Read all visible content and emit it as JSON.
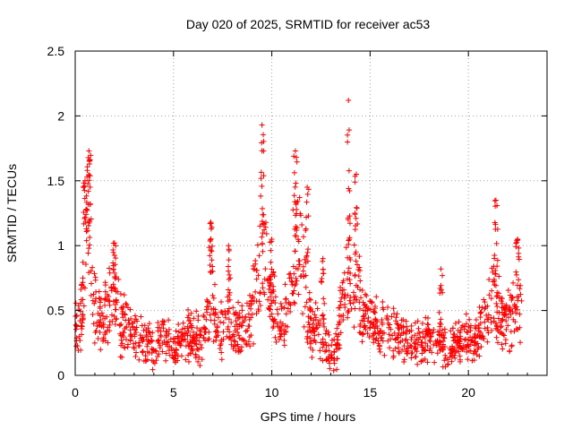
{
  "chart_data": {
    "type": "scatter",
    "title": "Day 020 of 2025, SRMTID for receiver ac53",
    "xlabel": "GPS time / hours",
    "ylabel": "SRMTID / TECUs",
    "xlim": [
      0,
      24
    ],
    "ylim": [
      0,
      2.5
    ],
    "xticks": [
      0,
      5,
      10,
      15,
      20
    ],
    "xtick_labels": [
      "0",
      "5",
      "10",
      "15",
      "20"
    ],
    "yticks": [
      0,
      0.5,
      1,
      1.5,
      2,
      2.5
    ],
    "ytick_labels": [
      "0",
      "0.5",
      "1",
      "1.5",
      "2",
      "2.5"
    ],
    "grid": true,
    "marker": "plus",
    "color": "#ff0000",
    "x_sample_range": [
      0,
      22.7
    ],
    "envelope": [
      [
        0.0,
        0.35
      ],
      [
        0.3,
        0.45
      ],
      [
        0.5,
        0.9
      ],
      [
        0.7,
        1.2
      ],
      [
        0.9,
        0.6
      ],
      [
        1.2,
        0.45
      ],
      [
        1.5,
        0.45
      ],
      [
        1.8,
        0.55
      ],
      [
        2.0,
        0.6
      ],
      [
        2.3,
        0.4
      ],
      [
        2.7,
        0.4
      ],
      [
        3.0,
        0.3
      ],
      [
        3.5,
        0.25
      ],
      [
        4.0,
        0.22
      ],
      [
        4.5,
        0.3
      ],
      [
        5.0,
        0.18
      ],
      [
        5.5,
        0.3
      ],
      [
        6.0,
        0.3
      ],
      [
        6.5,
        0.25
      ],
      [
        6.9,
        0.6
      ],
      [
        7.3,
        0.3
      ],
      [
        7.8,
        0.45
      ],
      [
        8.2,
        0.35
      ],
      [
        8.6,
        0.35
      ],
      [
        9.0,
        0.5
      ],
      [
        9.4,
        0.8
      ],
      [
        9.7,
        1.0
      ],
      [
        10.0,
        0.55
      ],
      [
        10.4,
        0.35
      ],
      [
        10.8,
        0.5
      ],
      [
        11.2,
        1.0
      ],
      [
        11.5,
        0.9
      ],
      [
        11.8,
        0.45
      ],
      [
        12.2,
        0.35
      ],
      [
        12.6,
        0.3
      ],
      [
        13.0,
        0.12
      ],
      [
        13.3,
        0.2
      ],
      [
        13.6,
        0.6
      ],
      [
        14.0,
        0.75
      ],
      [
        14.3,
        0.75
      ],
      [
        14.6,
        0.45
      ],
      [
        15.0,
        0.4
      ],
      [
        15.5,
        0.38
      ],
      [
        16.0,
        0.35
      ],
      [
        16.5,
        0.28
      ],
      [
        17.0,
        0.25
      ],
      [
        17.5,
        0.25
      ],
      [
        18.0,
        0.28
      ],
      [
        18.5,
        0.22
      ],
      [
        19.0,
        0.22
      ],
      [
        19.5,
        0.25
      ],
      [
        20.0,
        0.28
      ],
      [
        20.5,
        0.3
      ],
      [
        20.9,
        0.45
      ],
      [
        21.3,
        0.65
      ],
      [
        21.7,
        0.4
      ],
      [
        22.1,
        0.45
      ],
      [
        22.4,
        0.5
      ],
      [
        22.7,
        0.45
      ]
    ],
    "peaks": [
      [
        0.5,
        1.5
      ],
      [
        0.7,
        1.73
      ],
      [
        2.0,
        1.02
      ],
      [
        6.9,
        1.18
      ],
      [
        7.8,
        1.0
      ],
      [
        9.5,
        1.93
      ],
      [
        10.0,
        1.05
      ],
      [
        11.2,
        1.73
      ],
      [
        11.8,
        1.45
      ],
      [
        12.6,
        0.9
      ],
      [
        13.9,
        2.12
      ],
      [
        14.3,
        1.55
      ],
      [
        18.6,
        0.82
      ],
      [
        21.4,
        1.35
      ],
      [
        22.5,
        1.05
      ]
    ]
  }
}
